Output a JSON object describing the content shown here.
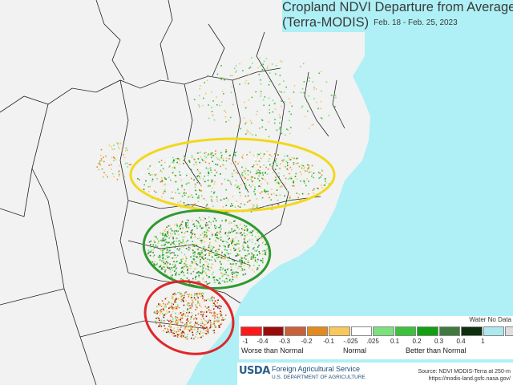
{
  "title": {
    "line1": "Cropland NDVI Departure from Average",
    "line2": "(Terra-MODIS)",
    "date_range": "Feb. 18 - Feb. 25, 2023"
  },
  "map": {
    "colors": {
      "ocean": "#aef0f5",
      "land": "#f2f2f2",
      "borders": "#222222",
      "yellow_ellipse": "#f2d81a",
      "green_ellipse": "#2f9a2f",
      "red_ellipse": "#e0262a"
    }
  },
  "legend": {
    "water_label": "Water No Data",
    "colors": [
      "#ff1a1a",
      "#9c0b0b",
      "#c8603a",
      "#e38a1f",
      "#f7c85a",
      "#ffffff",
      "#7ce07c",
      "#3ac23a",
      "#10a010",
      "#3f7a3f",
      "#0f2f0f",
      "#aee8ef",
      "#dedede"
    ],
    "ticks": [
      "-1",
      "-0.4",
      "-0.3",
      "-0.2",
      "-0.1",
      "-.025",
      ".025",
      "0.1",
      "0.2",
      "0.3",
      "0.4",
      "1"
    ],
    "worse_label": "Worse than Normal",
    "normal_label": "Normal",
    "better_label": "Better than Normal"
  },
  "footer": {
    "usda": "USDA",
    "agency": "Foreign Agricultural Service",
    "department": "U.S. DEPARTMENT OF AGRICULTURE",
    "source_line1": "Source: NDVI MODIS-Terra at 250-m",
    "source_line2": "https://modis-land.gsfc.nasa.gov/"
  }
}
